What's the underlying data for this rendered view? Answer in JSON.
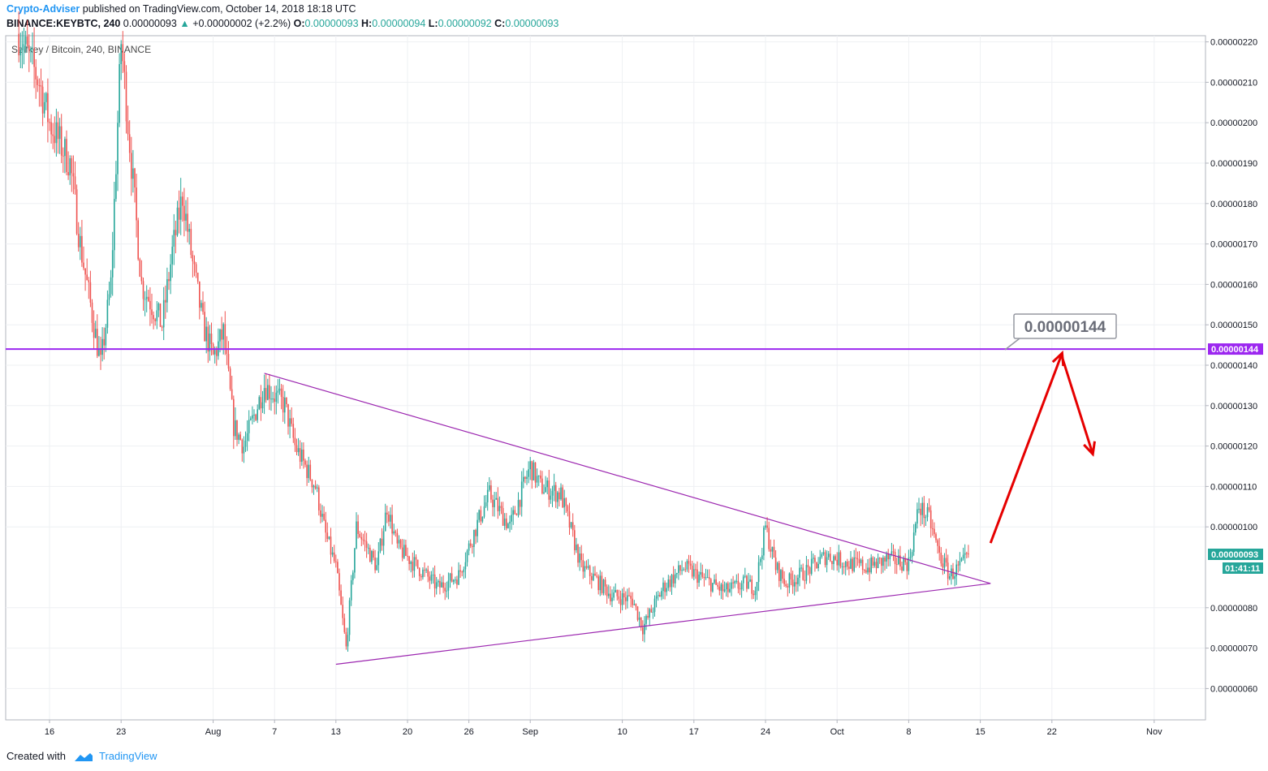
{
  "header": {
    "author": "Crypto-Adviser",
    "published": "published on TradingView.com, October 14, 2018 18:18 UTC",
    "symbol": "BINANCE:KEYBTC, 240",
    "price": "0.00000093",
    "change_arrow": "▲",
    "change": "+0.00000002 (+2.2%)",
    "o_label": "O:",
    "o": "0.00000093",
    "h_label": "H:",
    "h": "0.00000094",
    "l_label": "L:",
    "l": "0.00000092",
    "c_label": "C:",
    "c": "0.00000093"
  },
  "footer": {
    "created": "Created with",
    "brand": "TradingView",
    "logo_icon": "tradingview-logo-icon"
  },
  "colors": {
    "up": "#26a69a",
    "down": "#ef5350",
    "line": "#9c27b0",
    "arrow": "#e60000",
    "purple_label": "#9c27f0"
  },
  "chart_data": {
    "type": "candlestick",
    "title": "Selfkey / Bitcoin, 240, BINANCE",
    "xlabel": "",
    "ylabel": "",
    "ylim": [
      5.5e-07,
      2.23e-06
    ],
    "y_ticks": [
      "0.00000220",
      "0.00000210",
      "0.00000200",
      "0.00000190",
      "0.00000180",
      "0.00000170",
      "0.00000160",
      "0.00000150",
      "0.00000140",
      "0.00000130",
      "0.00000120",
      "0.00000110",
      "0.00000100",
      "0.00000080",
      "0.00000070",
      "0.00000060"
    ],
    "x_ticks": [
      "16",
      "23",
      "Aug",
      "7",
      "13",
      "20",
      "26",
      "Sep",
      "10",
      "17",
      "24",
      "Oct",
      "8",
      "15",
      "22",
      "Nov"
    ],
    "price_path": [
      {
        "t": "Jul 13",
        "v": 2.22e-06
      },
      {
        "t": "Jul 15",
        "v": 2.1e-06
      },
      {
        "t": "Jul 16",
        "v": 2e-06
      },
      {
        "t": "Jul 18",
        "v": 1.9e-06
      },
      {
        "t": "Jul 19",
        "v": 1.7e-06
      },
      {
        "t": "Jul 20",
        "v": 1.55e-06
      },
      {
        "t": "Jul 21",
        "v": 1.4e-06
      },
      {
        "t": "Jul 22",
        "v": 1.6e-06
      },
      {
        "t": "Jul 23",
        "v": 2.2e-06
      },
      {
        "t": "Jul 24",
        "v": 1.9e-06
      },
      {
        "t": "Jul 25",
        "v": 1.6e-06
      },
      {
        "t": "Jul 26",
        "v": 1.55e-06
      },
      {
        "t": "Jul 27",
        "v": 1.5e-06
      },
      {
        "t": "Jul 28",
        "v": 1.68e-06
      },
      {
        "t": "Jul 29",
        "v": 1.82e-06
      },
      {
        "t": "Jul 30",
        "v": 1.65e-06
      },
      {
        "t": "Jul 31",
        "v": 1.5e-06
      },
      {
        "t": "Aug 1",
        "v": 1.42e-06
      },
      {
        "t": "Aug 2",
        "v": 1.48e-06
      },
      {
        "t": "Aug 3",
        "v": 1.25e-06
      },
      {
        "t": "Aug 4",
        "v": 1.2e-06
      },
      {
        "t": "Aug 6",
        "v": 1.35e-06
      },
      {
        "t": "Aug 8",
        "v": 1.3e-06
      },
      {
        "t": "Aug 9",
        "v": 1.2e-06
      },
      {
        "t": "Aug 11",
        "v": 1.1e-06
      },
      {
        "t": "Aug 12",
        "v": 9.8e-07
      },
      {
        "t": "Aug 13",
        "v": 9e-07
      },
      {
        "t": "Aug 14",
        "v": 7e-07
      },
      {
        "t": "Aug 15",
        "v": 1e-06
      },
      {
        "t": "Aug 17",
        "v": 9e-07
      },
      {
        "t": "Aug 18",
        "v": 1.05e-06
      },
      {
        "t": "Aug 19",
        "v": 9.5e-07
      },
      {
        "t": "Aug 21",
        "v": 9e-07
      },
      {
        "t": "Aug 23",
        "v": 8.5e-07
      },
      {
        "t": "Aug 25",
        "v": 8.8e-07
      },
      {
        "t": "Aug 27",
        "v": 1.02e-06
      },
      {
        "t": "Aug 28",
        "v": 1.08e-06
      },
      {
        "t": "Aug 30",
        "v": 1e-06
      },
      {
        "t": "Sep 1",
        "v": 1.15e-06
      },
      {
        "t": "Sep 2",
        "v": 1.1e-06
      },
      {
        "t": "Sep 4",
        "v": 1.08e-06
      },
      {
        "t": "Sep 6",
        "v": 9e-07
      },
      {
        "t": "Sep 7",
        "v": 8.8e-07
      },
      {
        "t": "Sep 9",
        "v": 8.3e-07
      },
      {
        "t": "Sep 11",
        "v": 8.2e-07
      },
      {
        "t": "Sep 12",
        "v": 7.5e-07
      },
      {
        "t": "Sep 13",
        "v": 8e-07
      },
      {
        "t": "Sep 14",
        "v": 8.5e-07
      },
      {
        "t": "Sep 16",
        "v": 9e-07
      },
      {
        "t": "Sep 18",
        "v": 8.7e-07
      },
      {
        "t": "Sep 20",
        "v": 8.4e-07
      },
      {
        "t": "Sep 22",
        "v": 8.6e-07
      },
      {
        "t": "Sep 23",
        "v": 8.5e-07
      },
      {
        "t": "Sep 24",
        "v": 1e-06
      },
      {
        "t": "Sep 25",
        "v": 9e-07
      },
      {
        "t": "Sep 26",
        "v": 8.6e-07
      },
      {
        "t": "Sep 28",
        "v": 8.9e-07
      },
      {
        "t": "Sep 30",
        "v": 9.3e-07
      },
      {
        "t": "Oct 2",
        "v": 9.1e-07
      },
      {
        "t": "Oct 4",
        "v": 9e-07
      },
      {
        "t": "Oct 6",
        "v": 9.2e-07
      },
      {
        "t": "Oct 8",
        "v": 9.1e-07
      },
      {
        "t": "Oct 9",
        "v": 1.05e-06
      },
      {
        "t": "Oct 10",
        "v": 1.02e-06
      },
      {
        "t": "Oct 11",
        "v": 9.3e-07
      },
      {
        "t": "Oct 12",
        "v": 8.8e-07
      },
      {
        "t": "Oct 13",
        "v": 9e-07
      },
      {
        "t": "Oct 14",
        "v": 9.3e-07
      }
    ],
    "drawings": {
      "horizontal_line": {
        "price": 1.44e-06,
        "label": "0.00000144",
        "axis_label": "0.00000144",
        "color": "#9c27f0"
      },
      "triangle_upper": {
        "from": {
          "t": "Aug 6",
          "v": 1.38e-06
        },
        "to": {
          "t": "Oct 16",
          "v": 8.6e-07
        }
      },
      "triangle_lower": {
        "from": {
          "t": "Aug 13",
          "v": 6.6e-07
        },
        "to": {
          "t": "Oct 16",
          "v": 8.6e-07
        }
      },
      "forecast_up": {
        "from": {
          "t": "Oct 16",
          "v": 9.6e-07
        },
        "to": {
          "t": "Oct 23",
          "v": 1.43e-06
        }
      },
      "forecast_down": {
        "from": {
          "t": "Oct 23",
          "v": 1.42e-06
        },
        "to": {
          "t": "Oct 26",
          "v": 1.18e-06
        }
      }
    },
    "last_price_label": "0.00000093",
    "countdown_label": "01:41:11"
  }
}
